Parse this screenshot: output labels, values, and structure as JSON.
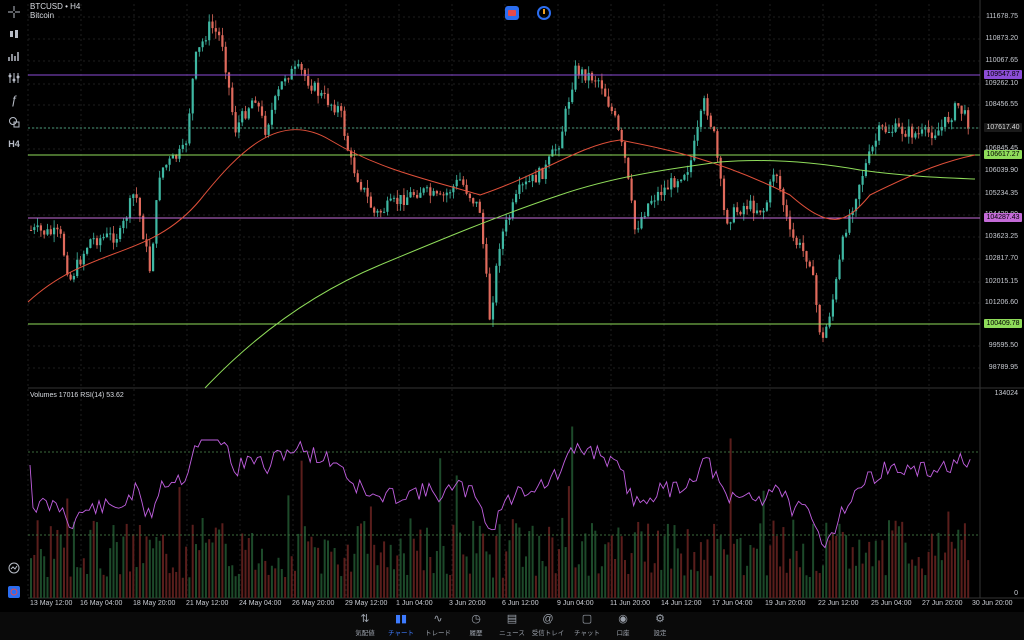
{
  "header": {
    "symbol": "BTCUSD • H4",
    "name": "Bitcoin"
  },
  "top_icons": [
    "record-icon",
    "timer-icon"
  ],
  "left_tools": [
    "crosshair-icon",
    "candles-icon",
    "chart-type-icon",
    "indicators-icon",
    "function-icon",
    "objects-icon",
    "timeframe-label"
  ],
  "timeframe": "H4",
  "volume_pane": {
    "label": "Volumes 17016  RSI(14) 53.62"
  },
  "price_axis": {
    "labels": [
      "111678.75",
      "110873.20",
      "110067.65",
      "109262.10",
      "108456.55",
      "107617.40",
      "106845.45",
      "106039.90",
      "105234.35",
      "104428.80",
      "103623.25",
      "102817.70",
      "102015.15",
      "101206.60",
      "100409.78",
      "99595.50",
      "98789.95"
    ],
    "badges": [
      {
        "text": "109547.87",
        "color": "#8b4dd6"
      },
      {
        "text": "107617.40",
        "color": "#1a1a1a"
      },
      {
        "text": "106617.27",
        "color": "#8fdc5a"
      },
      {
        "text": "104287.43",
        "color": "#c46bd8"
      },
      {
        "text": "100409.78",
        "color": "#8fdc5a"
      }
    ]
  },
  "volume_axis": {
    "top": "134024",
    "bottom": "0"
  },
  "time_axis": [
    "13 May 12:00",
    "16 May 04:00",
    "18 May 20:00",
    "21 May 12:00",
    "24 May 04:00",
    "26 May 20:00",
    "29 May 12:00",
    "1 Jun 04:00",
    "3 Jun 20:00",
    "6 Jun 12:00",
    "9 Jun 04:00",
    "11 Jun 20:00",
    "14 Jun 12:00",
    "17 Jun 04:00",
    "19 Jun 20:00",
    "22 Jun 12:00",
    "25 Jun 04:00",
    "27 Jun 20:00",
    "30 Jun 20:00"
  ],
  "bottom_nav": [
    {
      "label": "気配値",
      "icon": "quotes-icon"
    },
    {
      "label": "チャート",
      "icon": "chart-icon",
      "active": true
    },
    {
      "label": "トレード",
      "icon": "trade-icon"
    },
    {
      "label": "履歴",
      "icon": "history-icon"
    },
    {
      "label": "ニュース",
      "icon": "news-icon"
    },
    {
      "label": "受信トレイ",
      "icon": "inbox-icon"
    },
    {
      "label": "チャット",
      "icon": "chat-icon"
    },
    {
      "label": "口座",
      "icon": "account-icon"
    },
    {
      "label": "設定",
      "icon": "settings-icon"
    }
  ],
  "colors": {
    "up": "#3fb8a3",
    "down": "#e06a5c",
    "rsi": "#c15fe0",
    "ma_slow": "#8fdc5a",
    "ma_fast": "#e0503a"
  }
}
